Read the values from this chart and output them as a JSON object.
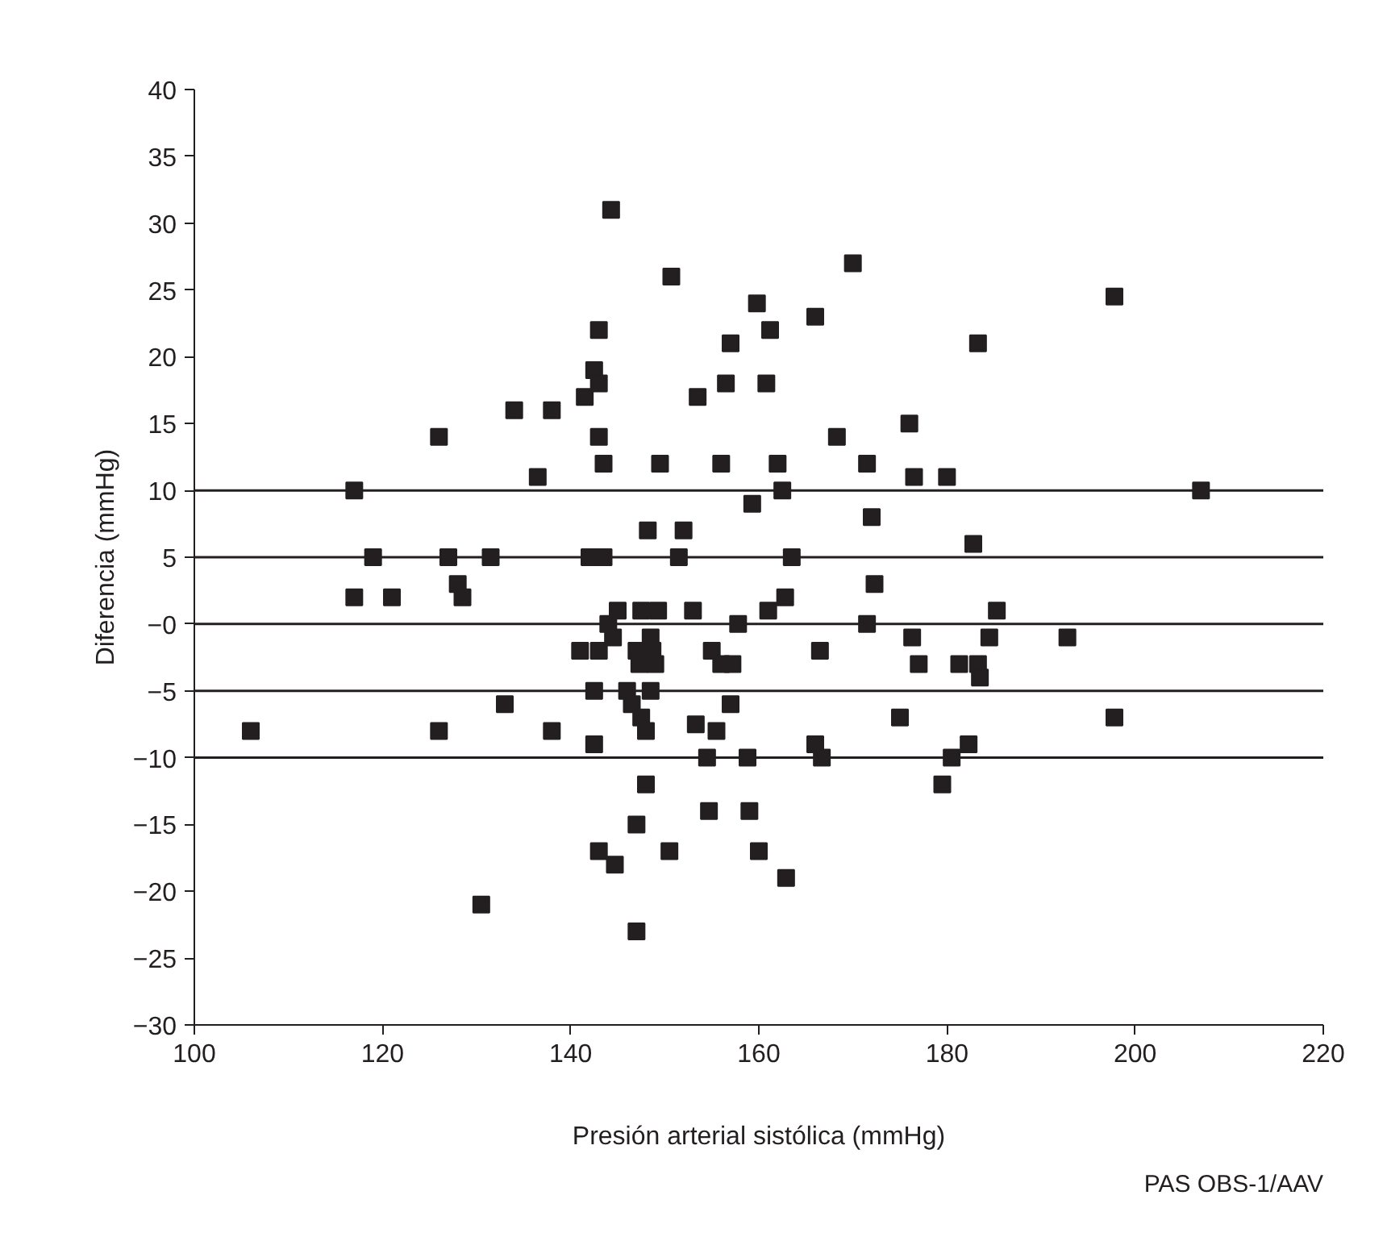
{
  "chart_data": {
    "type": "scatter",
    "xlabel": "Presión arterial sistólica (mmHg)",
    "ylabel": "Diferencia (mmHg)",
    "annotations": [
      "PAS OBS-1/AAV"
    ],
    "xlim": [
      100,
      220
    ],
    "xticks": [
      100,
      120,
      140,
      160,
      180,
      200,
      220
    ],
    "ylim": [
      -30,
      40
    ],
    "yticks": [
      {
        "value": -30,
        "label": "−30"
      },
      {
        "value": -25,
        "label": "−25"
      },
      {
        "value": -20,
        "label": "−20"
      },
      {
        "value": -15,
        "label": "−15"
      },
      {
        "value": -10,
        "label": "−10"
      },
      {
        "value": -5,
        "label": "−5"
      },
      {
        "value": 0,
        "label": "−0"
      },
      5,
      10,
      15,
      20,
      25,
      30,
      35,
      40
    ],
    "grid": false,
    "marker": "square",
    "ref_lines": [
      {
        "axis": "y",
        "value": 10
      },
      {
        "axis": "y",
        "value": 5
      },
      {
        "axis": "y",
        "value": 0
      },
      {
        "axis": "y",
        "value": -5
      },
      {
        "axis": "y",
        "value": -10
      }
    ],
    "series": [
      {
        "color": "#231f20",
        "x": [
          106,
          117,
          117,
          119,
          121,
          126,
          126,
          127,
          128,
          128.5,
          130.5,
          131.5,
          133,
          134,
          136.5,
          138,
          138,
          141,
          141.5,
          142,
          142.5,
          142.5,
          143,
          142.5,
          143,
          143,
          143,
          143,
          143.5,
          143.5,
          144,
          144.3,
          144.5,
          144.7,
          145,
          146,
          146.5,
          147,
          147,
          147,
          147.3,
          147.5,
          147.5,
          148,
          148,
          148.2,
          148.5,
          148.5,
          148.7,
          149,
          149.3,
          149.5,
          150.5,
          150.7,
          151.5,
          152,
          153,
          153.3,
          153.5,
          154.5,
          154.7,
          155,
          155.5,
          156,
          156,
          156.5,
          157,
          157,
          157.2,
          157.8,
          158.8,
          159,
          159.3,
          159.8,
          160,
          160.8,
          161,
          161.2,
          162,
          162.5,
          162.8,
          162.9,
          163.5,
          166,
          166,
          166.5,
          166.7,
          168.3,
          170,
          171.5,
          171.5,
          172,
          172.3,
          175,
          176,
          176.3,
          176.5,
          177,
          179.5,
          180,
          180.5,
          181.3,
          182.3,
          182.8,
          183.3,
          183.3,
          183.5,
          184.5,
          185.3,
          192.8,
          197.8,
          197.8,
          207
        ],
        "values": [
          -8,
          10,
          2,
          5,
          2,
          14,
          -8,
          5,
          3,
          2,
          -21,
          5,
          -6,
          16,
          11,
          16,
          -8,
          -2,
          17,
          5,
          -9,
          19,
          18,
          -5,
          22,
          14,
          -2,
          -17,
          12,
          5,
          0,
          31,
          -1,
          -18,
          1,
          -5,
          -6,
          -2,
          -15,
          -23,
          -3,
          1,
          -7,
          -8,
          -12,
          7,
          -1,
          -5,
          -2,
          -3,
          1,
          12,
          -17,
          26,
          5,
          7,
          1,
          -7.5,
          17,
          -10,
          -14,
          -2,
          -8,
          -3,
          12,
          18,
          -6,
          21,
          -3,
          0,
          -10,
          -14,
          9,
          24,
          -17,
          18,
          1,
          22,
          12,
          10,
          2,
          -19,
          5,
          23,
          -9,
          -2,
          -10,
          14,
          27,
          12,
          0,
          8,
          3,
          -7,
          15,
          -1,
          11,
          -3,
          -12,
          11,
          -10,
          -3,
          -9,
          6,
          21,
          -3,
          -4,
          -1,
          1,
          -1,
          24.5,
          -7,
          10
        ]
      }
    ]
  }
}
